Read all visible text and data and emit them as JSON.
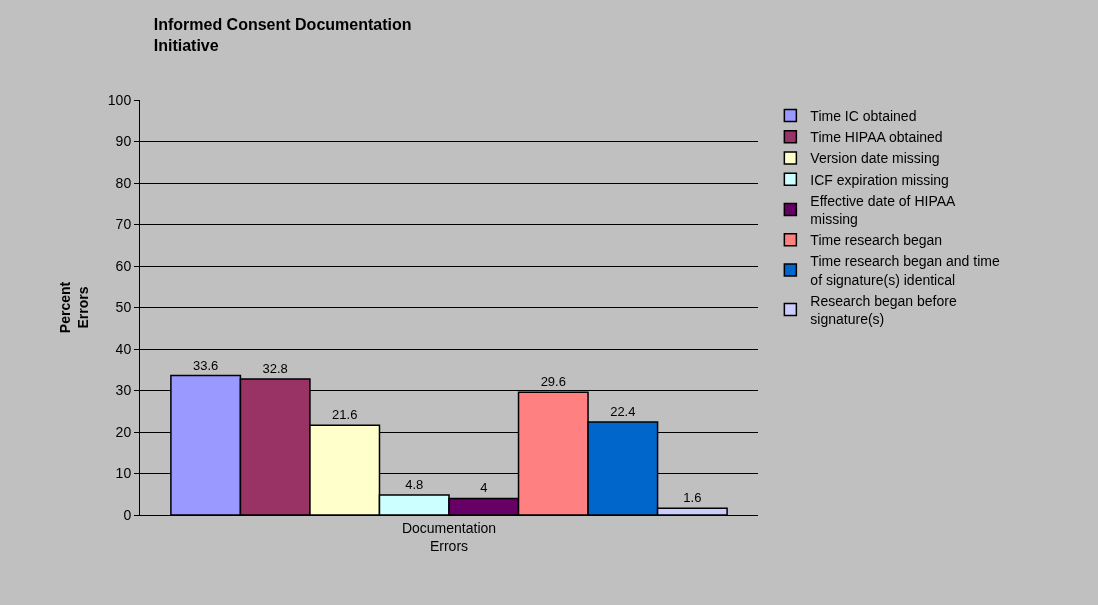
{
  "chart_data": {
    "type": "bar",
    "title": "Informed Consent Documentation Initiative",
    "ylabel": "Percent Errors",
    "categories": [
      "Documentation Errors"
    ],
    "series": [
      {
        "name": "Time IC obtained",
        "color": "#9999ff",
        "values": [
          33.6
        ]
      },
      {
        "name": "Time HIPAA obtained",
        "color": "#993366",
        "values": [
          32.8
        ]
      },
      {
        "name": "Version date missing",
        "color": "#ffffcc",
        "values": [
          21.6
        ]
      },
      {
        "name": "ICF expiration missing",
        "color": "#ccffff",
        "values": [
          4.8
        ]
      },
      {
        "name": "Effective date of HIPAA missing",
        "color": "#660066",
        "values": [
          4
        ]
      },
      {
        "name": "Time research began",
        "color": "#ff8080",
        "values": [
          29.6
        ]
      },
      {
        "name": "Time research began and time of signature(s) identical",
        "color": "#0066cc",
        "values": [
          22.4
        ]
      },
      {
        "name": "Research began before signature(s)",
        "color": "#ccccff",
        "values": [
          1.6
        ]
      }
    ],
    "ylim": [
      0,
      100
    ],
    "yticks": [
      0,
      10,
      20,
      30,
      40,
      50,
      60,
      70,
      80,
      90,
      100
    ],
    "grid": "y",
    "legend": "right",
    "data_labels": true
  }
}
